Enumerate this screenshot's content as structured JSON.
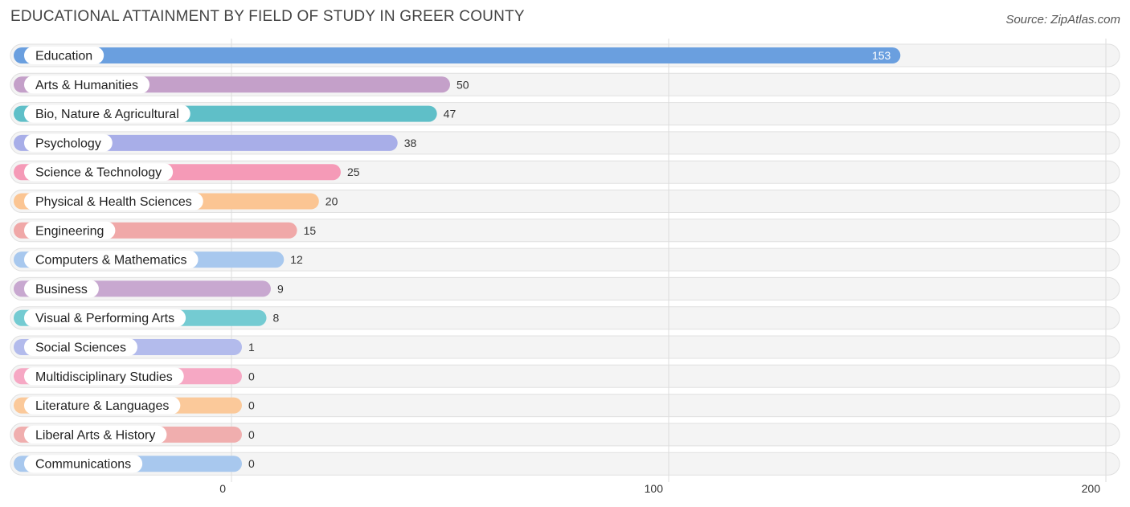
{
  "header": {
    "title": "EDUCATIONAL ATTAINMENT BY FIELD OF STUDY IN GREER COUNTY",
    "source": "Source: ZipAtlas.com"
  },
  "chart_data": {
    "type": "bar",
    "orientation": "horizontal",
    "title": "EDUCATIONAL ATTAINMENT BY FIELD OF STUDY IN GREER COUNTY",
    "categories": [
      "Education",
      "Arts & Humanities",
      "Bio, Nature & Agricultural",
      "Psychology",
      "Science & Technology",
      "Physical & Health Sciences",
      "Engineering",
      "Computers & Mathematics",
      "Business",
      "Visual & Performing Arts",
      "Social Sciences",
      "Multidisciplinary Studies",
      "Literature & Languages",
      "Liberal Arts & History",
      "Communications"
    ],
    "values": [
      153,
      50,
      47,
      38,
      25,
      20,
      15,
      12,
      9,
      8,
      1,
      0,
      0,
      0,
      0
    ],
    "colors": [
      "#6a9fdf",
      "#c4a0c9",
      "#5fbfc8",
      "#a8aee8",
      "#f59ab7",
      "#fbc593",
      "#f0a8a8",
      "#a8c8ee",
      "#c8a8d0",
      "#74cbd2",
      "#b3bbec",
      "#f6a8c4",
      "#fbc99a",
      "#f0aeae",
      "#a8c8ee"
    ],
    "xlim": [
      0,
      200
    ],
    "xticks": [
      "0",
      "100",
      "200"
    ],
    "grid": true
  }
}
